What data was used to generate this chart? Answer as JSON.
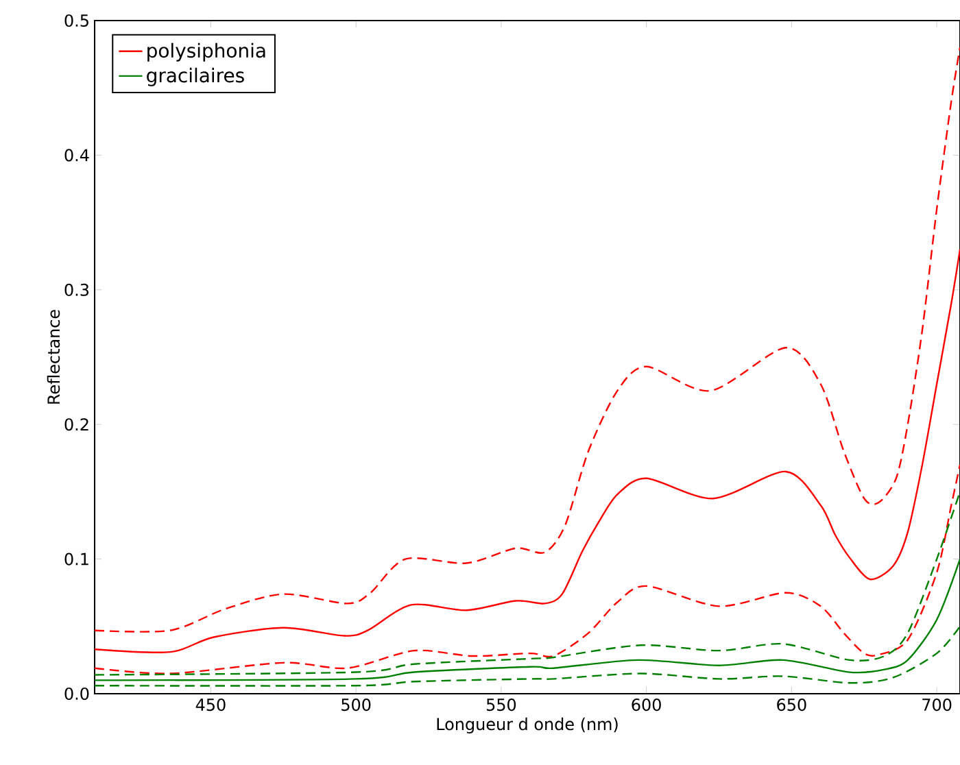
{
  "chart_data": {
    "type": "line",
    "xlabel": "Longueur d onde (nm)",
    "ylabel": "Reflectance",
    "xlim": [
      410,
      708
    ],
    "ylim": [
      0,
      0.5
    ],
    "xticks": [
      450,
      500,
      550,
      600,
      650,
      700
    ],
    "yticks": [
      {
        "value": 0,
        "label": "0.0"
      },
      0.1,
      0.2,
      0.3,
      0.4,
      0.5
    ],
    "legend": "top left",
    "grid": false,
    "marker": "none",
    "series": [
      {
        "name": "polysiphonia",
        "color": "#ff0000",
        "line_style": "solid",
        "x": [
          410,
          436,
          451,
          475,
          496,
          504,
          519,
          538,
          555,
          565,
          571,
          578,
          584,
          590,
          600,
          623,
          648,
          660,
          665,
          670,
          677,
          685,
          690,
          695,
          700,
          705,
          708
        ],
        "values": [
          0.033,
          0.031,
          0.042,
          0.049,
          0.043,
          0.047,
          0.066,
          0.062,
          0.069,
          0.067,
          0.074,
          0.106,
          0.129,
          0.148,
          0.16,
          0.145,
          0.165,
          0.14,
          0.118,
          0.101,
          0.085,
          0.095,
          0.12,
          0.17,
          0.23,
          0.29,
          0.33
        ]
      },
      {
        "color": "#ff0000",
        "line_style": "dashed",
        "x": [
          410,
          436,
          455,
          475,
          497,
          505,
          517,
          538,
          555,
          565,
          572,
          580,
          590,
          600,
          622,
          648,
          660,
          668,
          675,
          680,
          686,
          690,
          695,
          700,
          705,
          708
        ],
        "values": [
          0.047,
          0.047,
          0.063,
          0.074,
          0.067,
          0.075,
          0.1,
          0.097,
          0.108,
          0.105,
          0.125,
          0.18,
          0.225,
          0.243,
          0.225,
          0.257,
          0.23,
          0.18,
          0.145,
          0.142,
          0.16,
          0.2,
          0.27,
          0.36,
          0.44,
          0.48
        ]
      },
      {
        "color": "#ff0000",
        "line_style": "dashed",
        "x": [
          410,
          436,
          475,
          497,
          520,
          540,
          560,
          568,
          580,
          590,
          600,
          625,
          648,
          660,
          668,
          675,
          680,
          690,
          700,
          705,
          708
        ],
        "values": [
          0.019,
          0.015,
          0.023,
          0.019,
          0.032,
          0.028,
          0.03,
          0.028,
          0.045,
          0.068,
          0.08,
          0.065,
          0.075,
          0.065,
          0.045,
          0.03,
          0.029,
          0.04,
          0.09,
          0.14,
          0.17
        ]
      },
      {
        "name": "gracilaires",
        "color": "#008000",
        "line_style": "solid",
        "x": [
          410,
          500,
          520,
          560,
          568,
          597,
          625,
          647,
          670,
          682,
          690,
          700,
          708
        ],
        "values": [
          0.01,
          0.011,
          0.016,
          0.02,
          0.019,
          0.025,
          0.021,
          0.025,
          0.016,
          0.018,
          0.025,
          0.055,
          0.1
        ]
      },
      {
        "color": "#008000",
        "line_style": "dashed",
        "x": [
          410,
          500,
          520,
          560,
          568,
          598,
          625,
          647,
          670,
          682,
          690,
          700,
          708
        ],
        "values": [
          0.014,
          0.016,
          0.022,
          0.026,
          0.027,
          0.036,
          0.032,
          0.037,
          0.025,
          0.028,
          0.045,
          0.1,
          0.15
        ]
      },
      {
        "color": "#008000",
        "line_style": "dashed",
        "x": [
          410,
          500,
          520,
          560,
          568,
          598,
          625,
          647,
          670,
          685,
          700,
          708
        ],
        "values": [
          0.006,
          0.006,
          0.009,
          0.011,
          0.011,
          0.015,
          0.011,
          0.013,
          0.008,
          0.012,
          0.03,
          0.05
        ]
      }
    ]
  }
}
